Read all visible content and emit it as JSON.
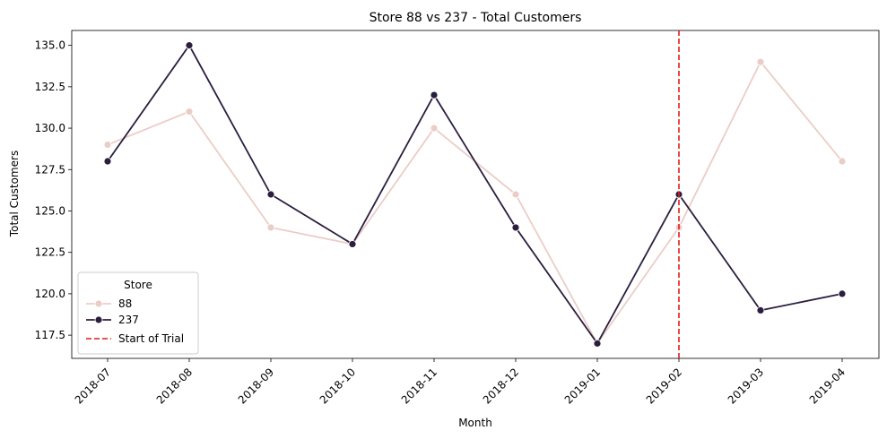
{
  "chart_data": {
    "type": "line",
    "title": "Store 88 vs 237 - Total Customers",
    "xlabel": "Month",
    "ylabel": "Total Customers",
    "categories": [
      "2018-07",
      "2018-08",
      "2018-09",
      "2018-10",
      "2018-11",
      "2018-12",
      "2019-01",
      "2019-02",
      "2019-03",
      "2019-04"
    ],
    "ylim": [
      116.1,
      135.9
    ],
    "yticks": [
      117.5,
      120.0,
      122.5,
      125.0,
      127.5,
      130.0,
      132.5,
      135.0
    ],
    "ytick_labels": [
      "117.5",
      "120.0",
      "122.5",
      "125.0",
      "127.5",
      "130.0",
      "132.5",
      "135.0"
    ],
    "series": [
      {
        "name": "88",
        "color": "#ebcdc7",
        "values": [
          129,
          131,
          124,
          123,
          130,
          126,
          117,
          124,
          134,
          128
        ]
      },
      {
        "name": "237",
        "color": "#2b1e3f",
        "values": [
          128,
          135,
          126,
          123,
          132,
          124,
          117,
          126,
          119,
          120
        ]
      }
    ],
    "annotation": {
      "label": "Start of Trial",
      "x": "2019-02",
      "color": "#e41a1c",
      "style": "dashed"
    },
    "legend": {
      "title": "Store",
      "placement": "lower-left"
    },
    "grid": false
  }
}
